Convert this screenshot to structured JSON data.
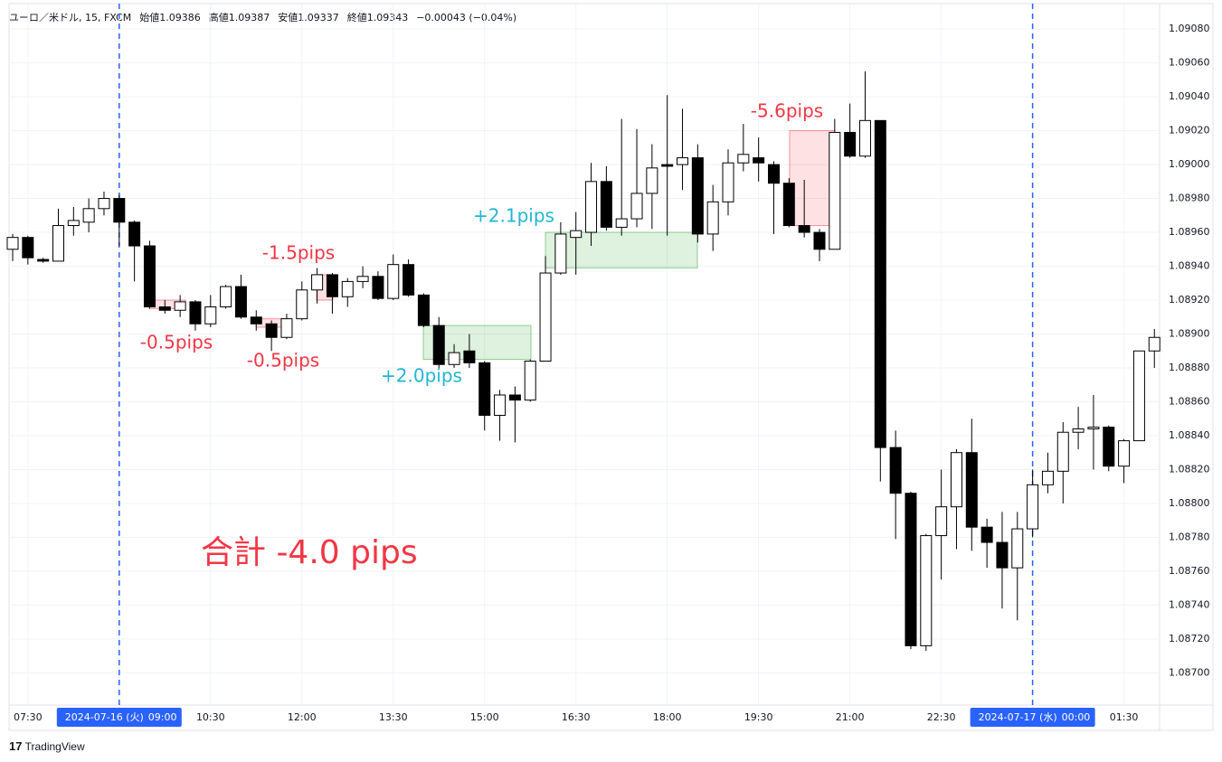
{
  "header": [
    "ユーロ／米ドル, 15, FXCM",
    "始値1.09386",
    "高値1.09387",
    "安値1.09337",
    "終値1.09343",
    "−0.00043 (−0.04%)"
  ],
  "footer": "TradingView",
  "chart_data": {
    "type": "candlestick",
    "categories": [
      null,
      "07:30",
      null,
      null,
      null,
      null,
      null,
      "09:00",
      null,
      null,
      null,
      null,
      null,
      "10:30",
      null,
      null,
      null,
      null,
      null,
      "12:00",
      null,
      null,
      null,
      null,
      null,
      "13:30",
      null,
      null,
      null,
      null,
      null,
      "15:00",
      null,
      null,
      null,
      null,
      null,
      "16:30",
      null,
      null,
      null,
      null,
      null,
      "18:00",
      null,
      null,
      null,
      null,
      null,
      "19:30",
      null,
      null,
      null,
      null,
      null,
      "21:00",
      null,
      null,
      null,
      null,
      null,
      "22:30",
      null,
      null,
      null,
      null,
      null,
      "00:00",
      null,
      null,
      null,
      null,
      null,
      "01:30",
      null,
      null
    ],
    "open": [
      1.0895,
      1.08957,
      1.08944,
      1.08943,
      1.08964,
      1.08966,
      1.08974,
      1.0898,
      1.08966,
      1.08952,
      1.08916,
      1.08914,
      1.08919,
      1.08906,
      1.08916,
      1.08928,
      1.0891,
      1.08906,
      1.08898,
      1.08909,
      1.08926,
      1.08935,
      1.08922,
      1.08931,
      1.08934,
      1.08921,
      1.08941,
      1.08923,
      1.08905,
      1.08882,
      1.0889,
      1.08883,
      1.08852,
      1.08864,
      1.08861,
      1.08884,
      1.08936,
      1.08957,
      1.0896,
      1.0899,
      1.08963,
      1.08968,
      1.08983,
      1.09,
      1.09,
      1.09004,
      1.08959,
      1.08978,
      1.09001,
      1.09004,
      1.09,
      1.08989,
      1.08964,
      1.0896,
      1.0895,
      1.09019,
      1.09005,
      1.09026,
      1.08833,
      1.08806,
      1.08716,
      1.08781,
      1.08798,
      1.0883,
      1.08786,
      1.08777,
      1.08762,
      1.08785,
      1.08811,
      1.08819,
      1.08842,
      1.08844,
      1.08845,
      1.08822,
      1.08837,
      1.0889
    ],
    "high": [
      1.08959,
      1.08958,
      1.08945,
      1.08974,
      1.08975,
      1.0898,
      1.08984,
      1.08982,
      1.08967,
      1.08955,
      1.0892,
      1.08923,
      1.0892,
      1.08923,
      1.08929,
      1.08935,
      1.08914,
      1.08908,
      1.08912,
      1.08931,
      1.08939,
      1.08936,
      1.08933,
      1.0894,
      1.08937,
      1.08947,
      1.08944,
      1.08924,
      1.0891,
      1.08894,
      1.089,
      1.08884,
      1.08867,
      1.08869,
      1.08885,
      1.08946,
      1.08966,
      1.08972,
      1.09001,
      1.08999,
      1.09027,
      1.09021,
      1.09012,
      1.09041,
      1.09033,
      1.09012,
      1.08988,
      1.09009,
      1.09024,
      1.09016,
      1.09002,
      1.08992,
      1.08991,
      1.08962,
      1.09027,
      1.09036,
      1.09055,
      1.09026,
      1.08843,
      1.08807,
      1.08782,
      1.0882,
      1.08832,
      1.0885,
      1.08791,
      1.08795,
      1.08795,
      1.0882,
      1.0883,
      1.08848,
      1.08857,
      1.08864,
      1.08846,
      1.08838,
      1.0889,
      1.08903
    ],
    "low": [
      1.08943,
      1.08941,
      1.08942,
      1.08943,
      1.08958,
      1.0896,
      1.0897,
      1.08952,
      1.08931,
      1.08915,
      1.08912,
      1.0891,
      1.08902,
      1.08904,
      1.08915,
      1.08909,
      1.08902,
      1.0889,
      1.08897,
      1.08908,
      1.08918,
      1.08912,
      1.08916,
      1.08927,
      1.0892,
      1.0892,
      1.08922,
      1.08904,
      1.0888,
      1.0888,
      1.0888,
      1.08843,
      1.08837,
      1.08836,
      1.0886,
      1.08884,
      1.08935,
      1.08935,
      1.08952,
      1.08961,
      1.08958,
      1.08963,
      1.08962,
      1.08958,
      1.08985,
      1.08954,
      1.08949,
      1.0897,
      1.08996,
      1.0899,
      1.08959,
      1.08963,
      1.08957,
      1.08943,
      1.0895,
      1.09004,
      1.09004,
      1.08813,
      1.08779,
      1.08714,
      1.08713,
      1.08755,
      1.08773,
      1.08772,
      1.08762,
      1.08738,
      1.08731,
      1.0878,
      1.08806,
      1.088,
      1.08832,
      1.0882,
      1.08819,
      1.08812,
      1.08837,
      1.0888
    ],
    "close": [
      1.08957,
      1.08945,
      1.08943,
      1.08964,
      1.08967,
      1.08974,
      1.0898,
      1.08966,
      1.08952,
      1.08916,
      1.08914,
      1.08919,
      1.08906,
      1.08916,
      1.08928,
      1.0891,
      1.08906,
      1.08898,
      1.08909,
      1.08926,
      1.08935,
      1.08922,
      1.08931,
      1.08934,
      1.08921,
      1.08941,
      1.08923,
      1.08905,
      1.08882,
      1.08889,
      1.08883,
      1.08852,
      1.08864,
      1.08861,
      1.08884,
      1.08936,
      1.08959,
      1.08961,
      1.0899,
      1.08963,
      1.08968,
      1.08983,
      1.08998,
      1.08999,
      1.09004,
      1.08959,
      1.08978,
      1.09001,
      1.09006,
      1.09001,
      1.08989,
      1.08964,
      1.0896,
      1.0895,
      1.09019,
      1.09005,
      1.09026,
      1.08833,
      1.08806,
      1.08716,
      1.08781,
      1.08798,
      1.0883,
      1.08786,
      1.08777,
      1.08762,
      1.08785,
      1.08811,
      1.08819,
      1.08842,
      1.08844,
      1.08845,
      1.08822,
      1.08837,
      1.0889,
      1.08898
    ],
    "ylim": [
      1.08681,
      1.09095
    ],
    "yticks": [
      {
        "value": 1.087,
        "label": "1.08700"
      },
      {
        "value": 1.0872,
        "label": "1.08720"
      },
      {
        "value": 1.0874,
        "label": "1.08740"
      },
      {
        "value": 1.0876,
        "label": "1.08760"
      },
      {
        "value": 1.0878,
        "label": "1.08780"
      },
      {
        "value": 1.088,
        "label": "1.08800"
      },
      {
        "value": 1.0882,
        "label": "1.08820"
      },
      {
        "value": 1.0884,
        "label": "1.08840"
      },
      {
        "value": 1.0886,
        "label": "1.08860"
      },
      {
        "value": 1.0888,
        "label": "1.08880"
      },
      {
        "value": 1.089,
        "label": "1.08900"
      },
      {
        "value": 1.0892,
        "label": "1.08920"
      },
      {
        "value": 1.0894,
        "label": "1.08940"
      },
      {
        "value": 1.0896,
        "label": "1.08960"
      },
      {
        "value": 1.0898,
        "label": "1.08980"
      },
      {
        "value": 1.09,
        "label": "1.09000"
      },
      {
        "value": 1.0902,
        "label": "1.09020"
      },
      {
        "value": 1.0904,
        "label": "1.09040"
      },
      {
        "value": 1.0906,
        "label": "1.09060"
      },
      {
        "value": 1.0908,
        "label": "1.09080"
      }
    ],
    "grid": true,
    "up_color": "#ffffff",
    "down_color": "#000000",
    "sessions": [
      {
        "category": "09:00",
        "date": "2024-07-16 (火)"
      },
      {
        "category": "00:00",
        "date": "2024-07-17 (水)"
      }
    ],
    "trades": [
      {
        "top": 1.0892,
        "bottom": 1.08915,
        "label": "-0.5pips",
        "color": "#f23645"
      },
      {
        "top": 1.08909,
        "bottom": 1.08904,
        "label": "-0.5pips",
        "color": "#f23645"
      },
      {
        "top": 1.08935,
        "bottom": 1.0892,
        "label": "-1.5pips",
        "color": "#f23645"
      },
      {
        "top": 1.08905,
        "bottom": 1.08885,
        "label": "+2.0pips",
        "color": "#22b5d4"
      },
      {
        "top": 1.0896,
        "bottom": 1.08939,
        "label": "+2.1pips",
        "color": "#22b5d4"
      },
      {
        "top": 1.0902,
        "bottom": 1.08964,
        "label": "-5.6pips",
        "color": "#f23645"
      }
    ],
    "total": "合計 -4.0 pips"
  }
}
